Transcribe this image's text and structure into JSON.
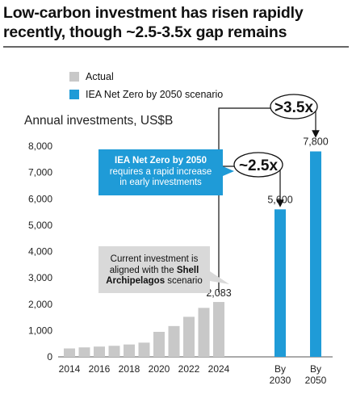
{
  "header": {
    "title_line1": "Low-carbon investment has risen rapidly",
    "title_line2": "recently, though ~2.5-3.5x gap remains"
  },
  "legend": {
    "actual_label": "Actual",
    "scenario_label": "IEA Net Zero  by 2050 scenario"
  },
  "colors": {
    "actual": "#c8c8c8",
    "scenario": "#1f9bd7"
  },
  "callouts": {
    "scenario_bold": "IEA Net Zero by 2050",
    "scenario_line2": "requires a rapid increase",
    "scenario_line3": "in early investments",
    "current_line1": "Current investment is",
    "current_line2a": "aligned with the ",
    "current_line2b": "Shell",
    "current_line3a": "Archipelagos",
    "current_line3b": " scenario",
    "gap_low": "~2.5x",
    "gap_high": ">3.5x"
  },
  "chart_data": {
    "type": "bar",
    "ylabel": "Annual investments,  US$B",
    "ylim": [
      0,
      8000
    ],
    "yticks": [
      "0",
      "1,000",
      "2,000",
      "3,000",
      "4,000",
      "5,000",
      "6,000",
      "7,000",
      "8,000"
    ],
    "series": [
      {
        "name": "Actual",
        "categories": [
          "2014",
          "2015",
          "2016",
          "2017",
          "2018",
          "2019",
          "2020",
          "2021",
          "2022",
          "2023",
          "2024"
        ],
        "values": [
          320,
          360,
          390,
          420,
          470,
          540,
          950,
          1170,
          1520,
          1860,
          2083
        ]
      },
      {
        "name": "IEA Net Zero  by 2050 scenario",
        "categories": [
          "By 2030",
          "By 2050"
        ],
        "values": [
          5600,
          7800
        ]
      }
    ],
    "xtick_labels": [
      "2014",
      "2016",
      "2018",
      "2020",
      "2022",
      "2024"
    ],
    "scenario_tick_labels": [
      [
        "By",
        "2030"
      ],
      [
        "By",
        "2050"
      ]
    ],
    "data_labels": {
      "2024": "2,083",
      "By 2030": "5,600",
      "By 2050": "7,800"
    }
  }
}
